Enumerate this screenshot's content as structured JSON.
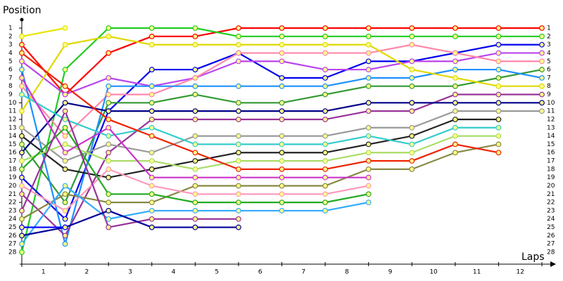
{
  "chart_data": {
    "type": "line",
    "y_label": "Position",
    "x_label": "Laps",
    "x": [
      0,
      1,
      2,
      3,
      4,
      5,
      6,
      7,
      8,
      9,
      10,
      11,
      12
    ],
    "xlim": [
      0,
      12
    ],
    "ylim": [
      1,
      28
    ],
    "xticks": [
      {
        "value": 0.5,
        "label": "1"
      },
      {
        "value": 1.5,
        "label": "2"
      },
      {
        "value": 2.5,
        "label": "3"
      },
      {
        "value": 3.5,
        "label": "4"
      },
      {
        "value": 4.5,
        "label": "5"
      },
      {
        "value": 5.5,
        "label": "6"
      },
      {
        "value": 6.5,
        "label": "7"
      },
      {
        "value": 7.5,
        "label": "8"
      },
      {
        "value": 8.5,
        "label": "9"
      },
      {
        "value": 9.5,
        "label": "10"
      },
      {
        "value": 10.5,
        "label": "11"
      },
      {
        "value": 11.5,
        "label": "12"
      }
    ],
    "yticks": [
      1,
      2,
      3,
      4,
      5,
      6,
      7,
      8,
      9,
      10,
      11,
      12,
      13,
      14,
      15,
      16,
      17,
      18,
      19,
      20,
      21,
      22,
      23,
      24,
      25,
      26,
      27,
      28
    ],
    "series": [
      {
        "color": "#ff0000",
        "values": [
          3,
          9,
          4,
          2,
          2,
          1,
          1,
          1,
          1,
          1,
          1,
          1,
          1
        ]
      },
      {
        "color": "#22cc22",
        "values": [
          28,
          6,
          1,
          1,
          1,
          2,
          2,
          2,
          2,
          2,
          2,
          2,
          2
        ]
      },
      {
        "color": "#0000ee",
        "values": [
          19,
          24,
          11,
          6,
          6,
          4,
          7,
          7,
          5,
          5,
          4,
          3,
          3
        ]
      },
      {
        "color": "#bb44ee",
        "values": [
          5,
          9,
          7,
          8,
          7,
          5,
          5,
          6,
          6,
          5,
          5,
          4,
          4
        ]
      },
      {
        "color": "#ff88aa",
        "values": [
          8,
          14,
          9,
          9,
          7,
          4,
          4,
          4,
          4,
          3,
          4,
          5,
          5
        ]
      },
      {
        "color": "#339933",
        "values": [
          15,
          22,
          10,
          10,
          9,
          10,
          10,
          9,
          8,
          8,
          8,
          7,
          6
        ]
      },
      {
        "color": "#1e90ff",
        "values": [
          6,
          27,
          8,
          8,
          8,
          8,
          8,
          8,
          7,
          7,
          6,
          6,
          7
        ]
      },
      {
        "color": "#e0d800",
        "values": [
          11,
          3,
          2,
          3,
          3,
          3,
          3,
          3,
          3,
          6,
          7,
          8,
          8
        ]
      },
      {
        "color": "#993399",
        "values": [
          21,
          26,
          16,
          12,
          12,
          12,
          12,
          12,
          11,
          11,
          9,
          9,
          9
        ]
      },
      {
        "color": "#000088",
        "values": [
          16,
          10,
          11,
          11,
          11,
          11,
          11,
          11,
          10,
          10,
          10,
          10,
          10
        ]
      },
      {
        "color": "#999999",
        "values": [
          13,
          17,
          15,
          16,
          14,
          14,
          14,
          14,
          13,
          13,
          11,
          11,
          11
        ]
      },
      {
        "color": "#222222",
        "values": [
          14,
          18,
          19,
          18,
          17,
          16,
          16,
          16,
          15,
          14,
          12,
          12,
          null
        ]
      },
      {
        "color": "#33cccc",
        "values": [
          9,
          12,
          14,
          13,
          15,
          15,
          15,
          15,
          14,
          15,
          13,
          13,
          null
        ]
      },
      {
        "color": "#aadd66",
        "values": [
          17,
          15,
          17,
          17,
          18,
          17,
          17,
          17,
          16,
          16,
          14,
          14,
          null
        ]
      },
      {
        "color": "#888844",
        "values": [
          24,
          21,
          22,
          22,
          20,
          20,
          20,
          20,
          18,
          18,
          16,
          15,
          null
        ]
      },
      {
        "color": "#ee2200",
        "values": [
          4,
          8,
          12,
          14,
          16,
          18,
          18,
          18,
          17,
          17,
          15,
          16,
          null
        ]
      },
      {
        "color": "#cc33cc",
        "values": [
          7,
          16,
          13,
          19,
          19,
          19,
          19,
          19,
          19,
          null,
          null,
          null,
          null
        ]
      },
      {
        "color": "#ff99bb",
        "values": [
          20,
          23,
          18,
          20,
          21,
          21,
          21,
          21,
          20,
          null,
          null,
          null,
          null
        ]
      },
      {
        "color": "#22aa22",
        "values": [
          18,
          13,
          21,
          21,
          22,
          22,
          22,
          22,
          21,
          null,
          null,
          null,
          null
        ]
      },
      {
        "color": "#33aaff",
        "values": [
          27,
          20,
          24,
          23,
          23,
          23,
          23,
          23,
          22,
          null,
          null,
          null,
          null
        ]
      },
      {
        "color": "#993399",
        "values": [
          23,
          11,
          25,
          24,
          24,
          24,
          null,
          null,
          null,
          null,
          null,
          null,
          null
        ]
      },
      {
        "color": "#000099",
        "values": [
          26,
          25,
          23,
          25,
          25,
          25,
          null,
          null,
          null,
          null,
          null,
          null,
          null
        ]
      },
      {
        "color": "#0000ff",
        "values": [
          25,
          25,
          null,
          null,
          null,
          null,
          null,
          null,
          null,
          null,
          null,
          null,
          null
        ]
      },
      {
        "color": "#e6e600",
        "values": [
          2,
          1,
          null,
          null,
          null,
          null,
          null,
          null,
          null,
          null,
          null,
          null,
          null
        ]
      }
    ]
  }
}
